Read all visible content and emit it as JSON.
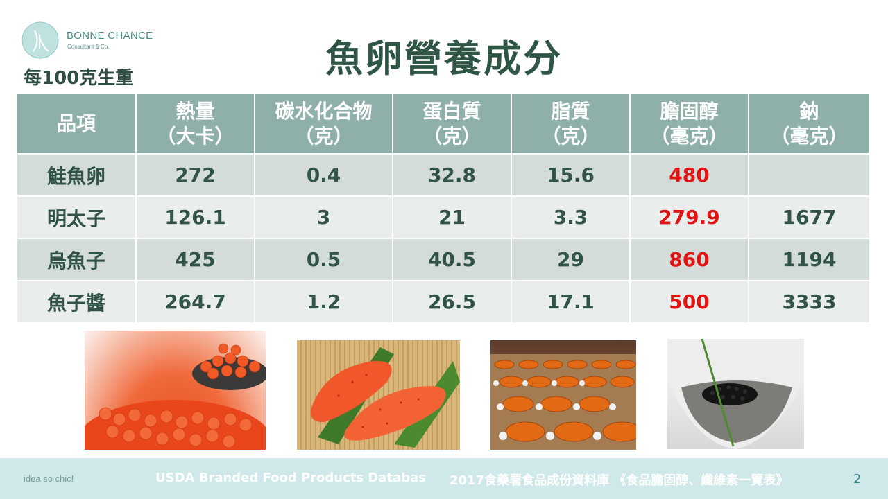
{
  "logo": {
    "name": "BONNE CHANCE",
    "subtitle": "Consultant & Co."
  },
  "per_unit_label": "每100克生重",
  "title": "魚卵營養成分",
  "table": {
    "headers": [
      {
        "line1": "品項",
        "line2": ""
      },
      {
        "line1": "熱量",
        "line2": "（大卡）"
      },
      {
        "line1": "碳水化合物",
        "line2": "（克）"
      },
      {
        "line1": "蛋白質",
        "line2": "（克）"
      },
      {
        "line1": "脂質",
        "line2": "（克）"
      },
      {
        "line1": "膽固醇",
        "line2": "（毫克）"
      },
      {
        "line1": "鈉",
        "line2": "（毫克）"
      }
    ],
    "rows": [
      {
        "item": "鮭魚卵",
        "calories": "272",
        "carbs": "0.4",
        "protein": "32.8",
        "fat": "15.6",
        "cholesterol": "480",
        "sodium": ""
      },
      {
        "item": "明太子",
        "calories": "126.1",
        "carbs": "3",
        "protein": "21",
        "fat": "3.3",
        "cholesterol": "279.9",
        "sodium": "1677"
      },
      {
        "item": "烏魚子",
        "calories": "425",
        "carbs": "0.5",
        "protein": "40.5",
        "fat": "29",
        "cholesterol": "860",
        "sodium": "1194"
      },
      {
        "item": "魚子醬",
        "calories": "264.7",
        "carbs": "1.2",
        "protein": "26.5",
        "fat": "17.1",
        "cholesterol": "500",
        "sodium": "3333"
      }
    ]
  },
  "colors": {
    "header_bg": "#8fb0aa",
    "row_dark": "#d3dcd9",
    "row_light": "#e9eeec",
    "cholesterol_text": "#e11313",
    "footer_bg": "#cfe9ea"
  },
  "photos": [
    {
      "name": "salmon-roe-photo"
    },
    {
      "name": "mentaiko-photo"
    },
    {
      "name": "mullet-roe-photo"
    },
    {
      "name": "caviar-photo"
    }
  ],
  "footer": {
    "tagline": "idea so chic!",
    "source1": "USDA Branded Food Products Databas",
    "source2": "2017食藥署食品成份資料庫 《食品膽固醇、纖維素一覽表》",
    "page_number": "2"
  }
}
